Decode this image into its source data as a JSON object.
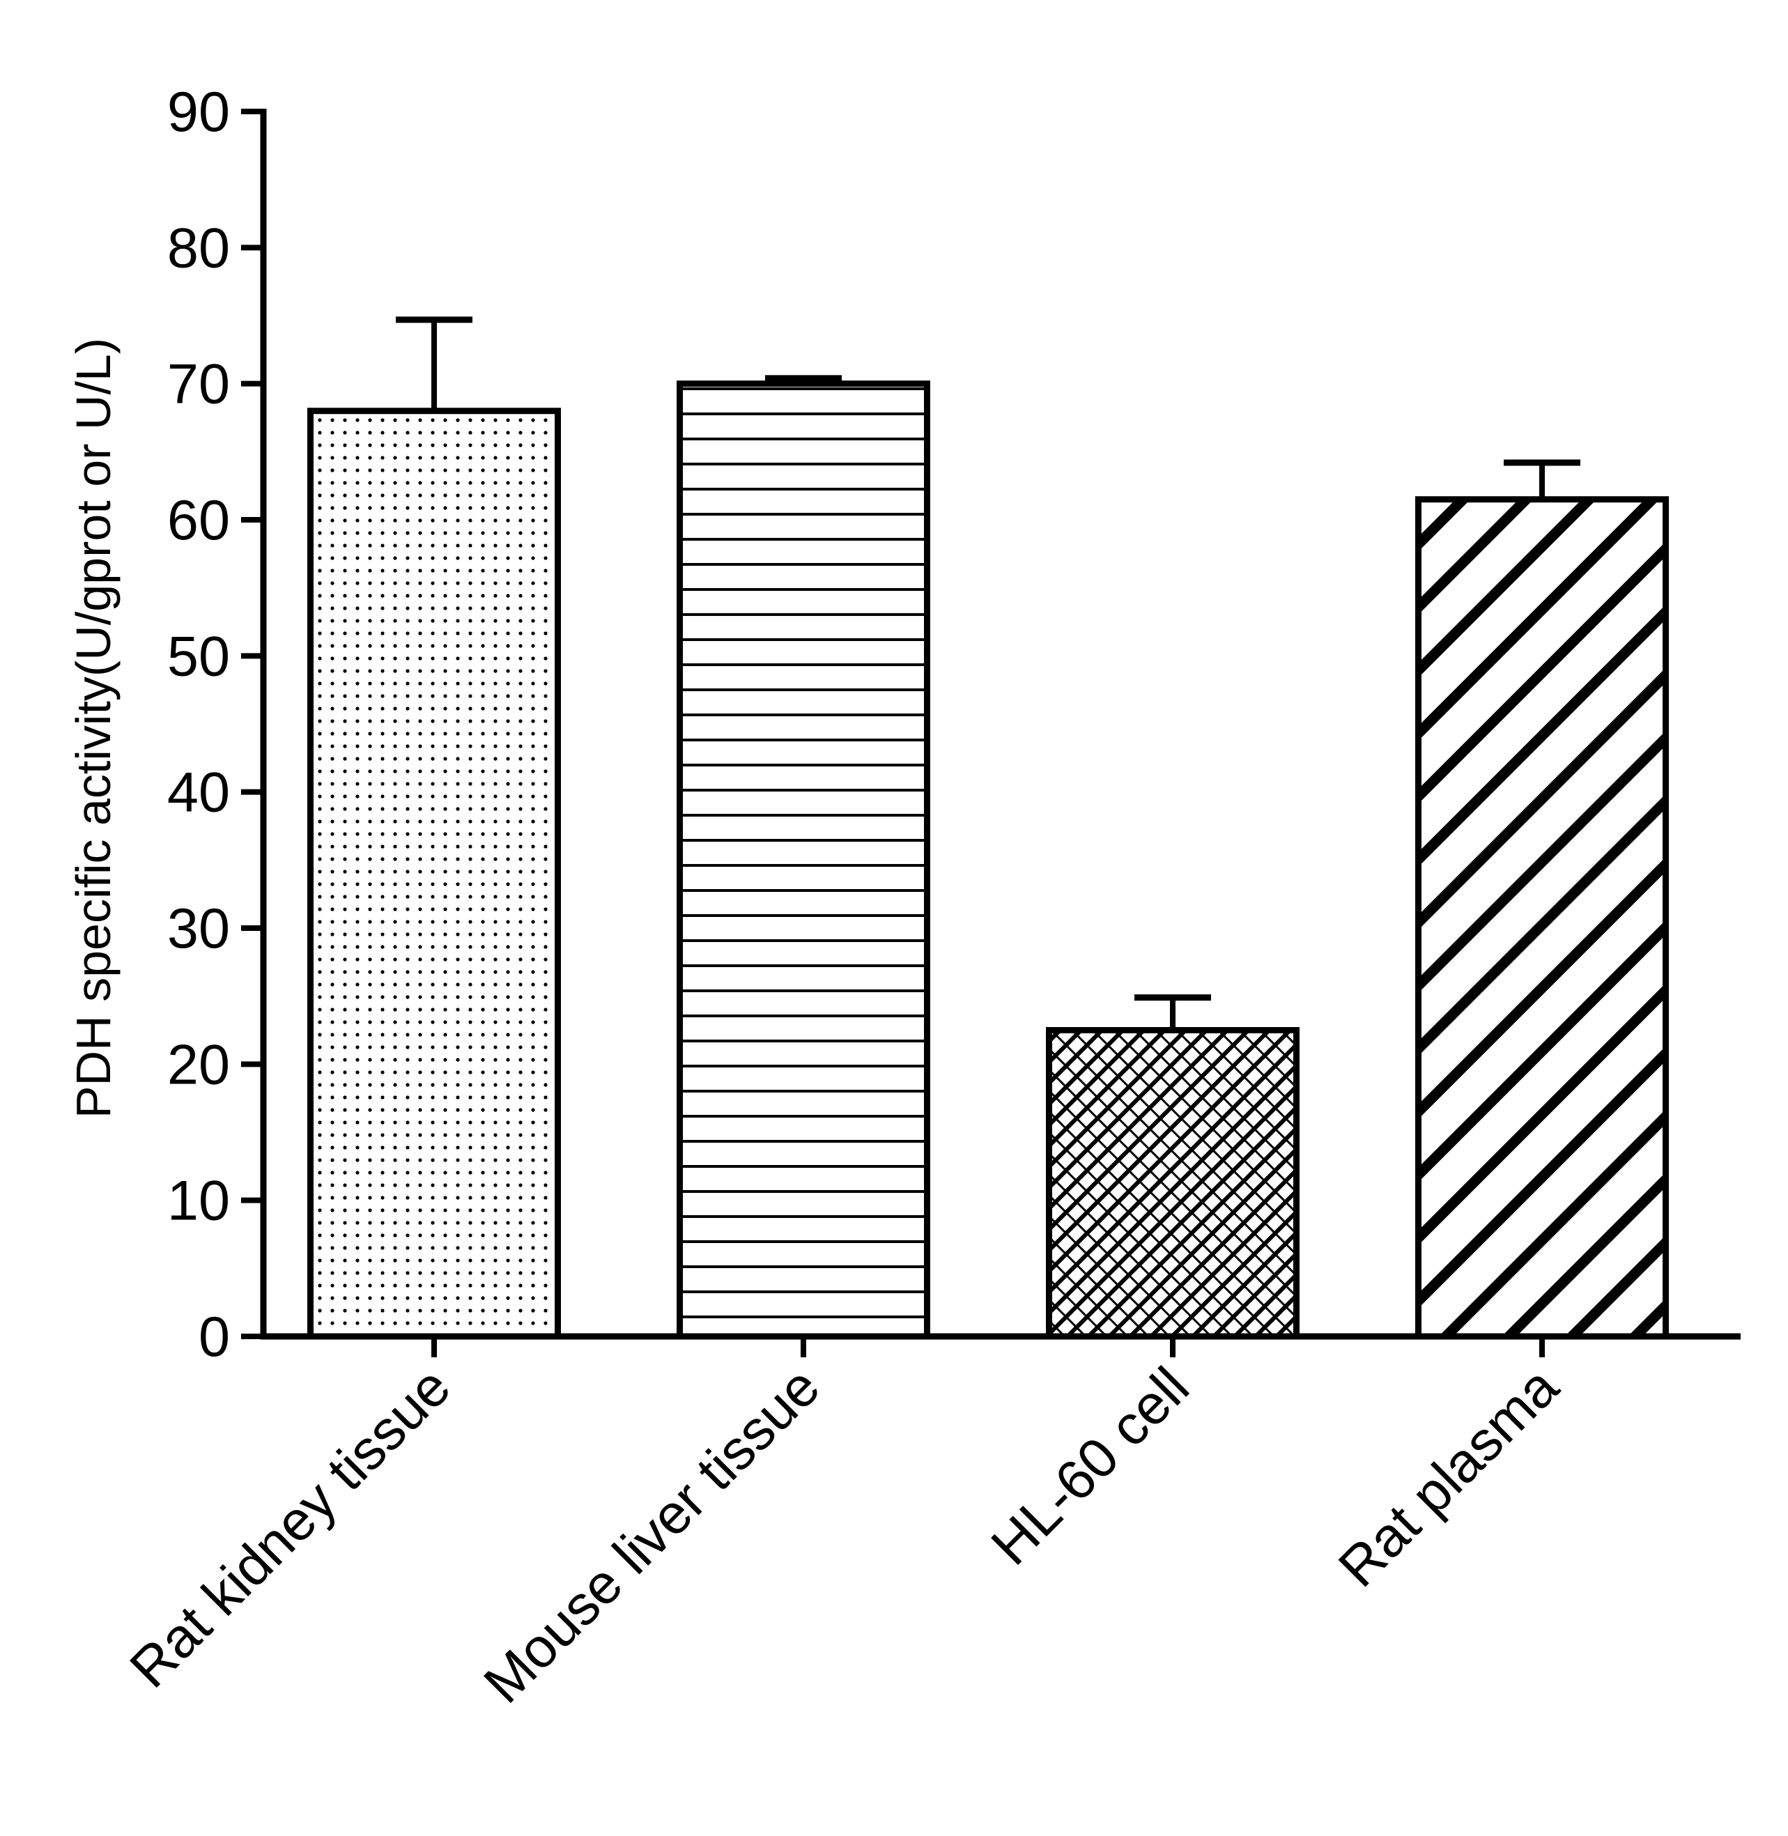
{
  "chart_data": {
    "type": "bar",
    "title": "",
    "xlabel": "",
    "ylabel": "PDH specific activity(U/gprot or U/L)",
    "ylim": [
      0,
      90
    ],
    "yticks": [
      0,
      10,
      20,
      30,
      40,
      50,
      60,
      70,
      80,
      90
    ],
    "grid": false,
    "categories": [
      "Rat kidney tissue",
      "Mouse liver tissue",
      "HL-60 cell",
      "Rat plasma"
    ],
    "values": [
      68,
      70,
      22.5,
      61.5
    ],
    "errors": [
      6.7,
      0.4,
      2.4,
      2.7
    ],
    "patterns": [
      "dots",
      "horizontal-lines",
      "cross-hatch",
      "diagonal-stripes"
    ],
    "colors": {
      "stroke": "#000000",
      "fill": "#ffffff"
    }
  }
}
